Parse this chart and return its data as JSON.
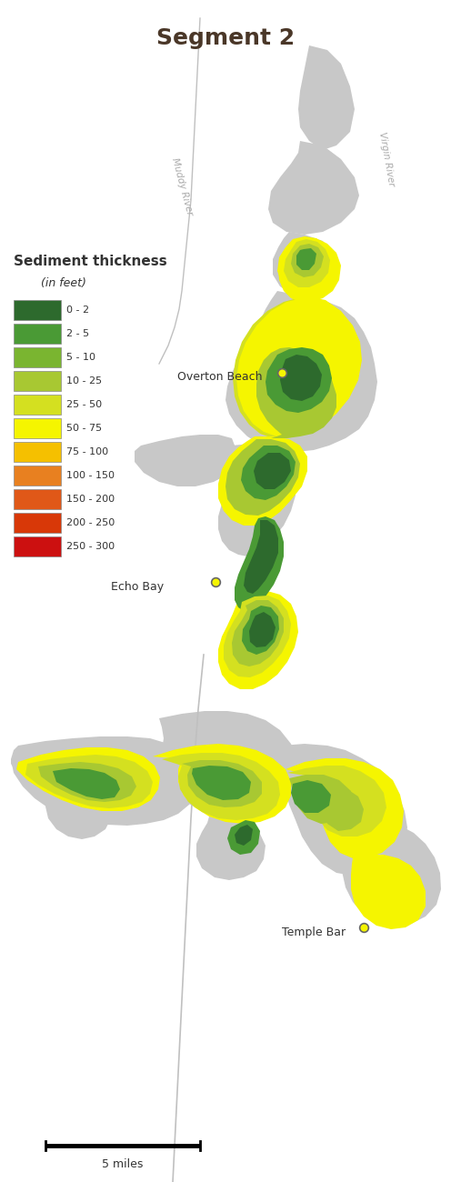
{
  "title": "Segment 2",
  "title_fontsize": 18,
  "title_color": "#4a3728",
  "title_fontweight": "bold",
  "legend_title": "Sediment thickness",
  "legend_subtitle": "(in feet)",
  "legend_entries": [
    {
      "label": "0 - 2",
      "color": "#2d6a2d"
    },
    {
      "label": "2 - 5",
      "color": "#4a9a35"
    },
    {
      "label": "5 - 10",
      "color": "#7ab530"
    },
    {
      "label": "10 - 25",
      "color": "#a8c832"
    },
    {
      "label": "25 - 50",
      "color": "#d4e020"
    },
    {
      "label": "50 - 75",
      "color": "#f5f500"
    },
    {
      "label": "75 - 100",
      "color": "#f5c000"
    },
    {
      "label": "100 - 150",
      "color": "#e88020"
    },
    {
      "label": "150 - 200",
      "color": "#e05818"
    },
    {
      "label": "200 - 250",
      "color": "#d83808"
    },
    {
      "label": "250 - 300",
      "color": "#cc1010"
    }
  ],
  "lake_color": "#c8c8c8",
  "bg_color": "#ffffff",
  "river_line_color": "#b0b0b0",
  "point_color": "#f5f500",
  "point_edge_color": "#666666",
  "fig_width": 4.96,
  "fig_height": 13.0,
  "dpi": 100
}
